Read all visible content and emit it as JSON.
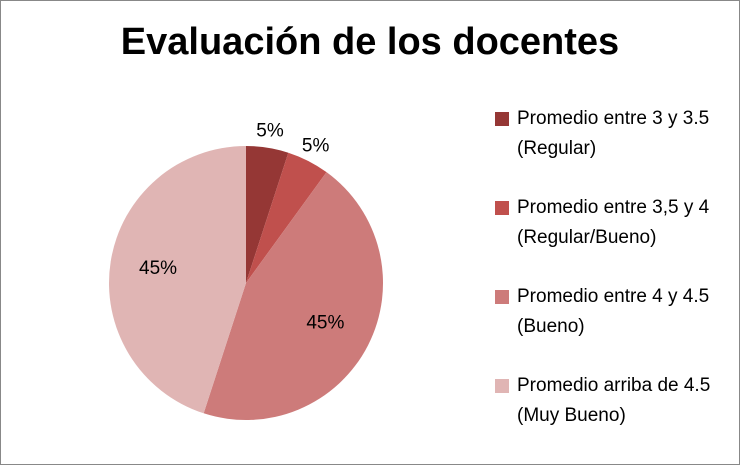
{
  "chart_data": {
    "type": "pie",
    "title": "Evaluación de los docentes",
    "categories": [
      "Promedio entre 3 y 3.5 (Regular)",
      "Promedio entre 3,5 y 4 (Regular/Bueno)",
      "Promedio entre 4 y 4.5 (Bueno)",
      "Promedio arriba de 4.5 (Muy Bueno)"
    ],
    "values": [
      5,
      5,
      45,
      45
    ],
    "value_labels": [
      "5%",
      "5%",
      "45%",
      "45%"
    ],
    "colors": [
      "#953735",
      "#c0504d",
      "#cd7b7a",
      "#e0b5b4"
    ],
    "legend": "right"
  }
}
